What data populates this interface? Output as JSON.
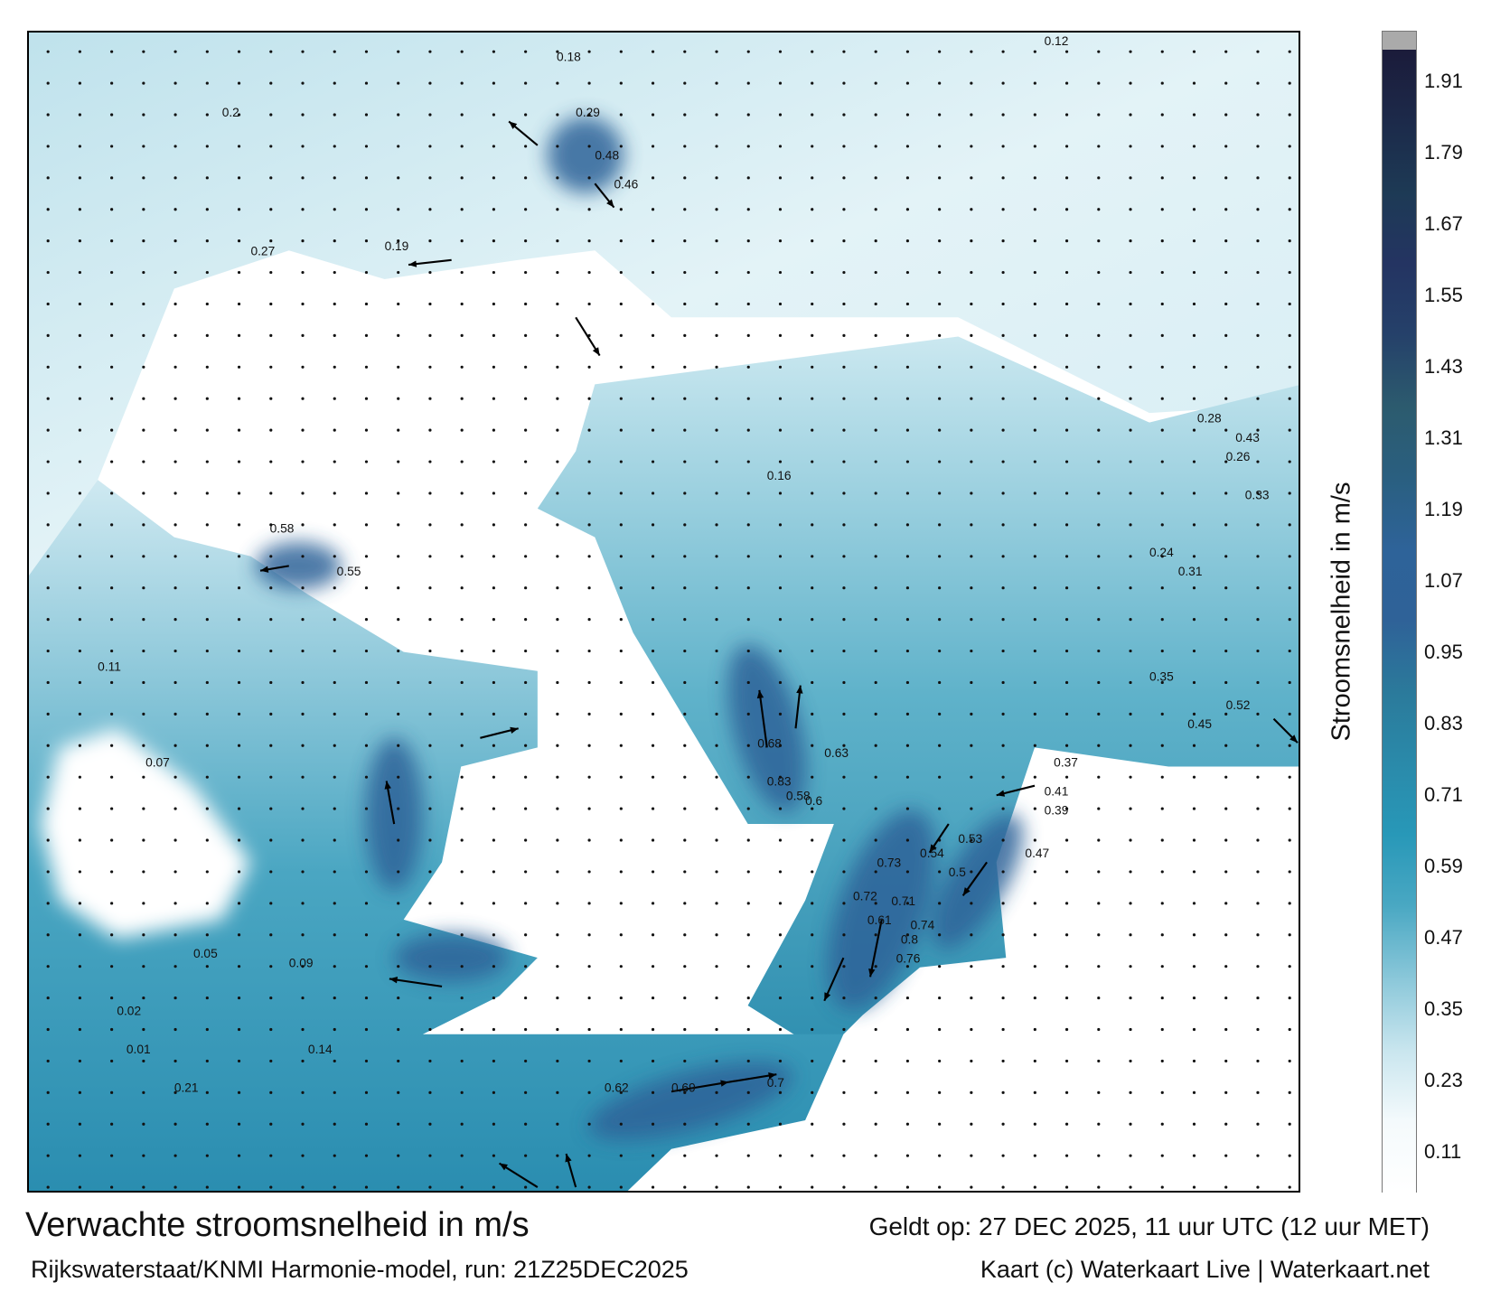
{
  "title": "Verwachte stroomsnelheid in m/s",
  "valid_time": "Geldt op: 27 DEC 2025, 11 uur UTC (12 uur MET)",
  "source": "Rijkswaterstaat/KNMI Harmonie-model, run: 21Z25DEC2025",
  "credit": "Kaart (c) Waterkaart Live | Waterkaart.net",
  "colorbar": {
    "label": "Stroomsnelheid in m/s",
    "ticks": [
      "1.91",
      "1.79",
      "1.67",
      "1.55",
      "1.43",
      "1.31",
      "1.19",
      "1.07",
      "0.95",
      "0.83",
      "0.71",
      "0.59",
      "0.47",
      "0.35",
      "0.23",
      "0.11"
    ],
    "colors": [
      "#1b1b3a",
      "#1c2a4a",
      "#1d3a55",
      "#243462",
      "#25416a",
      "#2c5b6e",
      "#2a5f80",
      "#2e6399",
      "#2f6298",
      "#2b7a9b",
      "#2a8aaa",
      "#2898b8",
      "#4aa8c3",
      "#8ac7d9",
      "#c8e5ee",
      "#f4fafc"
    ],
    "overflow_color": "#aaaaaa"
  },
  "map": {
    "land_color": "#ffffff",
    "water_light": "#d3ecf3",
    "water_mid": "#6bb8cf",
    "water_dark": "#2e6399",
    "speed_labels": [
      "0.12",
      "0.18",
      "0.2",
      "0.29",
      "0.48",
      "0.46",
      "0.27",
      "0.19",
      "0.58",
      "0.55",
      "0.72",
      "0.6",
      "0.58",
      "0.74",
      "0.61",
      "0.63",
      "0.68",
      "0.83",
      "0.73",
      "0.71",
      "0.8",
      "0.76",
      "0.54",
      "0.53",
      "0.5",
      "0.47",
      "0.37",
      "0.41",
      "0.39",
      "0.62",
      "0.69",
      "0.7",
      "0.35",
      "0.24",
      "0.31",
      "0.45",
      "0.52",
      "0.16",
      "0.11",
      "0.07",
      "0.05",
      "0.02",
      "0.01",
      "0.09",
      "0.14",
      "0.21",
      "0.26",
      "0.33",
      "0.43",
      "0.28"
    ]
  }
}
